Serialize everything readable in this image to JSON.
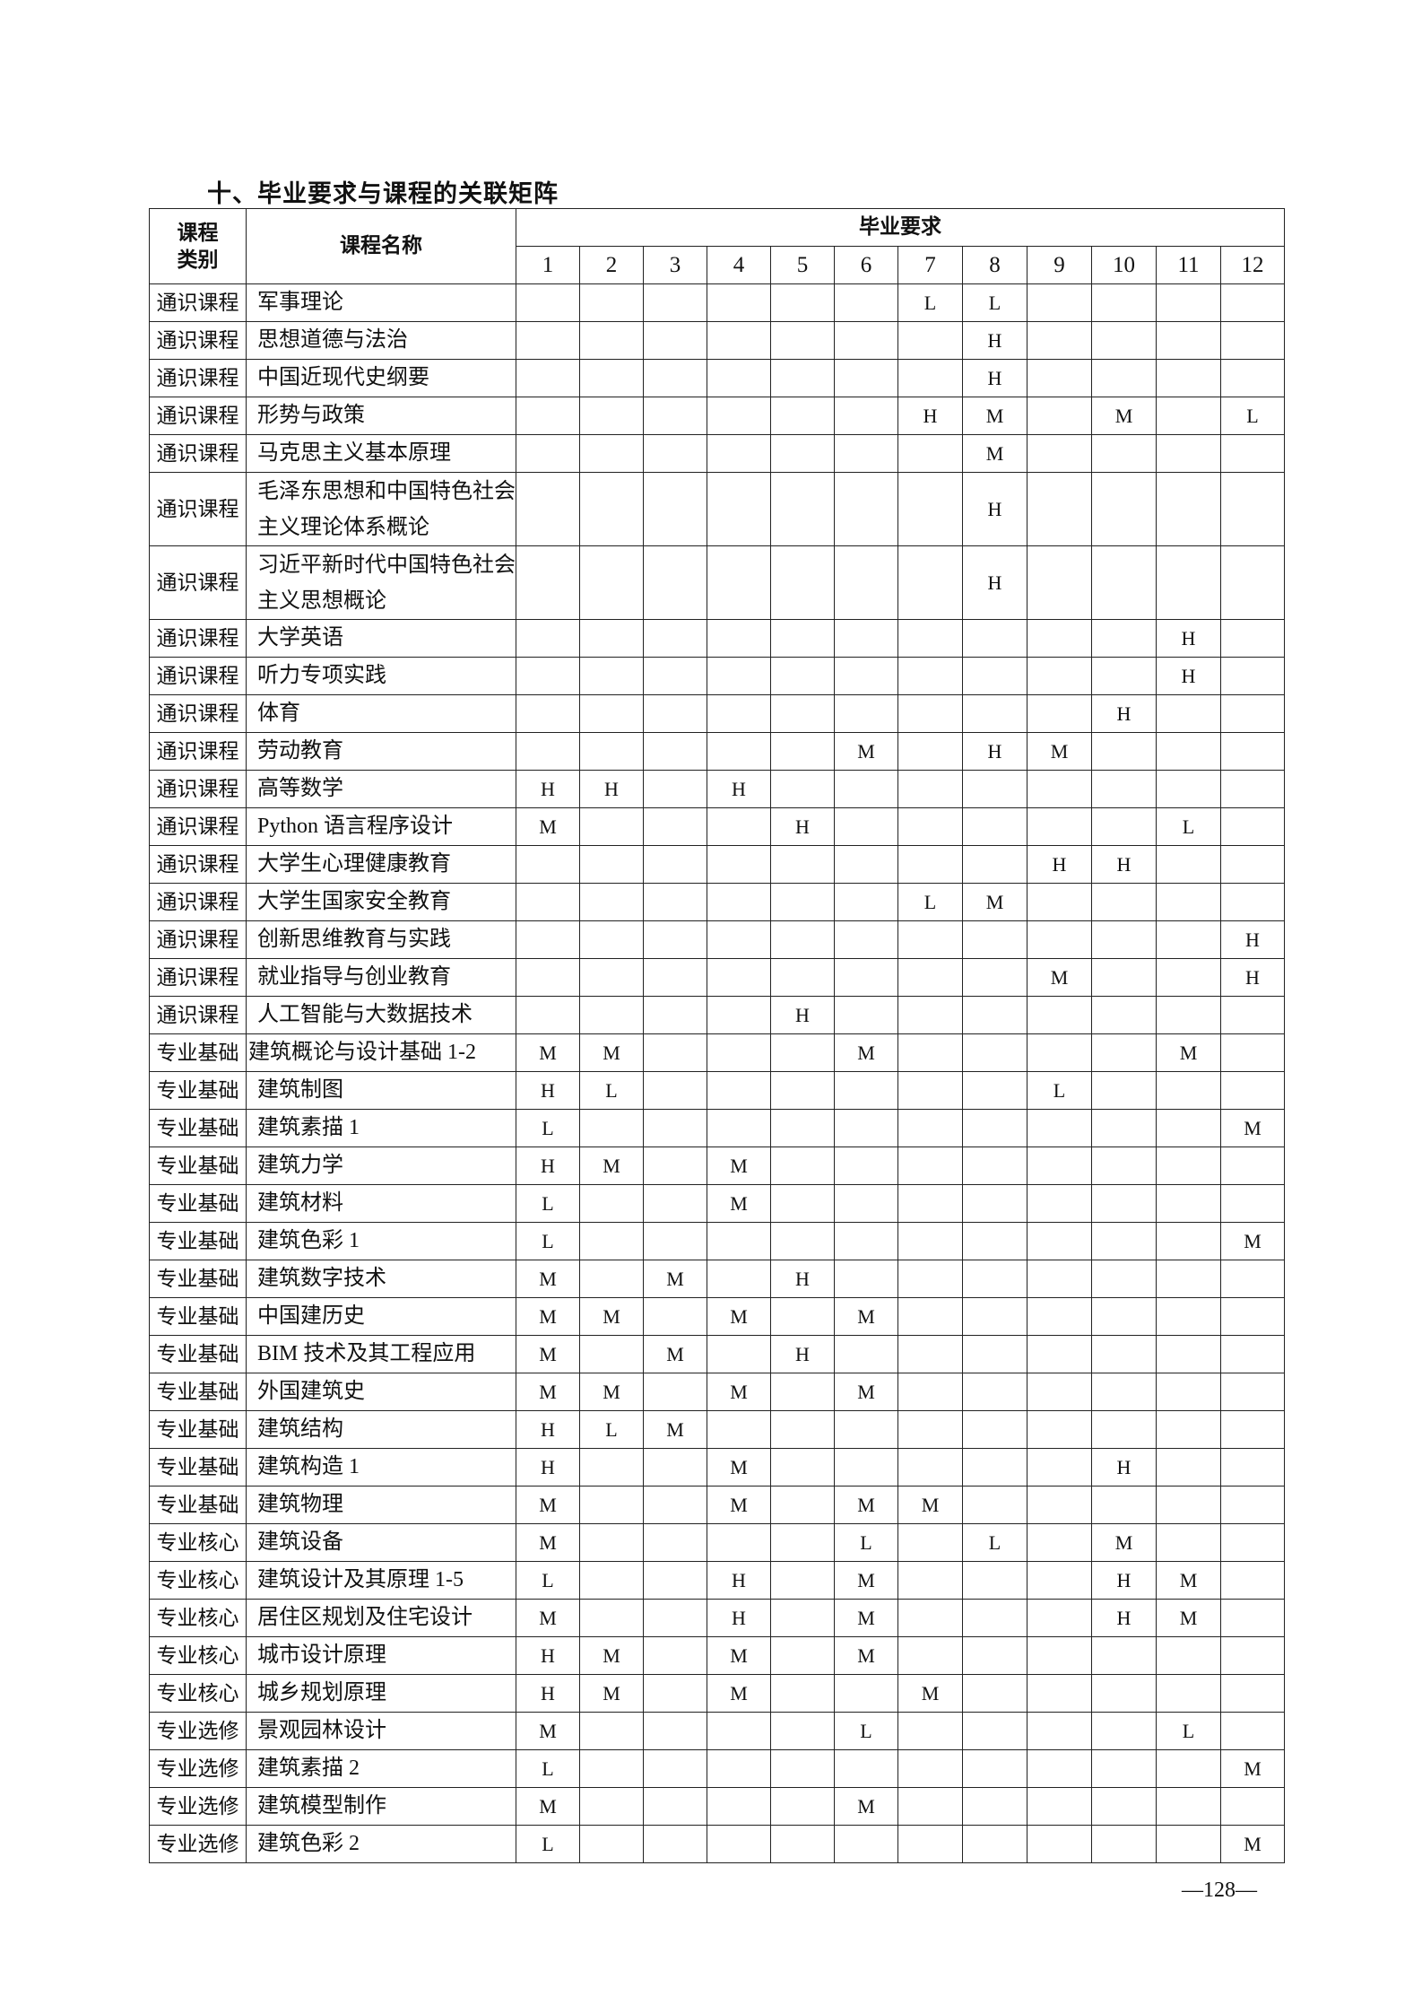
{
  "title": "十、毕业要求与课程的关联矩阵",
  "header": {
    "category_line1": "课程",
    "category_line2": "类别",
    "name": "课程名称",
    "requirements": "毕业要求",
    "columns": [
      "1",
      "2",
      "3",
      "4",
      "5",
      "6",
      "7",
      "8",
      "9",
      "10",
      "11",
      "12"
    ]
  },
  "rows": [
    {
      "category": "通识课程",
      "name": "军事理论",
      "values": [
        "",
        "",
        "",
        "",
        "",
        "",
        "L",
        "L",
        "",
        "",
        "",
        ""
      ]
    },
    {
      "category": "通识课程",
      "name": "思想道德与法治",
      "values": [
        "",
        "",
        "",
        "",
        "",
        "",
        "",
        "H",
        "",
        "",
        "",
        ""
      ]
    },
    {
      "category": "通识课程",
      "name": "中国近现代史纲要",
      "values": [
        "",
        "",
        "",
        "",
        "",
        "",
        "",
        "H",
        "",
        "",
        "",
        ""
      ]
    },
    {
      "category": "通识课程",
      "name": "形势与政策",
      "values": [
        "",
        "",
        "",
        "",
        "",
        "",
        "H",
        "M",
        "",
        "M",
        "",
        "L"
      ]
    },
    {
      "category": "通识课程",
      "name": "马克思主义基本原理",
      "values": [
        "",
        "",
        "",
        "",
        "",
        "",
        "",
        "M",
        "",
        "",
        "",
        ""
      ]
    },
    {
      "category": "通识课程",
      "name": "毛泽东思想和中国特色社会主义理论体系概论",
      "values": [
        "",
        "",
        "",
        "",
        "",
        "",
        "",
        "H",
        "",
        "",
        "",
        ""
      ]
    },
    {
      "category": "通识课程",
      "name": "习近平新时代中国特色社会主义思想概论",
      "values": [
        "",
        "",
        "",
        "",
        "",
        "",
        "",
        "H",
        "",
        "",
        "",
        ""
      ]
    },
    {
      "category": "通识课程",
      "name": "大学英语",
      "values": [
        "",
        "",
        "",
        "",
        "",
        "",
        "",
        "",
        "",
        "",
        "H",
        ""
      ]
    },
    {
      "category": "通识课程",
      "name": "听力专项实践",
      "values": [
        "",
        "",
        "",
        "",
        "",
        "",
        "",
        "",
        "",
        "",
        "H",
        ""
      ]
    },
    {
      "category": "通识课程",
      "name": "体育",
      "values": [
        "",
        "",
        "",
        "",
        "",
        "",
        "",
        "",
        "",
        "H",
        "",
        ""
      ]
    },
    {
      "category": "通识课程",
      "name": "劳动教育",
      "values": [
        "",
        "",
        "",
        "",
        "",
        "M",
        "",
        "H",
        "M",
        "",
        "",
        ""
      ]
    },
    {
      "category": "通识课程",
      "name": "高等数学",
      "values": [
        "H",
        "H",
        "",
        "H",
        "",
        "",
        "",
        "",
        "",
        "",
        "",
        ""
      ]
    },
    {
      "category": "通识课程",
      "name": "Python 语言程序设计",
      "values": [
        "M",
        "",
        "",
        "",
        "H",
        "",
        "",
        "",
        "",
        "",
        "L",
        ""
      ]
    },
    {
      "category": "通识课程",
      "name": "大学生心理健康教育",
      "values": [
        "",
        "",
        "",
        "",
        "",
        "",
        "",
        "",
        "H",
        "H",
        "",
        ""
      ]
    },
    {
      "category": "通识课程",
      "name": "大学生国家安全教育",
      "values": [
        "",
        "",
        "",
        "",
        "",
        "",
        "L",
        "M",
        "",
        "",
        "",
        ""
      ]
    },
    {
      "category": "通识课程",
      "name": "创新思维教育与实践",
      "values": [
        "",
        "",
        "",
        "",
        "",
        "",
        "",
        "",
        "",
        "",
        "",
        "H"
      ]
    },
    {
      "category": "通识课程",
      "name": "就业指导与创业教育",
      "values": [
        "",
        "",
        "",
        "",
        "",
        "",
        "",
        "",
        "M",
        "",
        "",
        "H"
      ]
    },
    {
      "category": "通识课程",
      "name": "人工智能与大数据技术",
      "values": [
        "",
        "",
        "",
        "",
        "H",
        "",
        "",
        "",
        "",
        "",
        "",
        ""
      ]
    },
    {
      "category": "专业基础",
      "name": "建筑概论与设计基础 1-2",
      "values": [
        "M",
        "M",
        "",
        "",
        "",
        "M",
        "",
        "",
        "",
        "",
        "M",
        ""
      ]
    },
    {
      "category": "专业基础",
      "name": "建筑制图",
      "values": [
        "H",
        "L",
        "",
        "",
        "",
        "",
        "",
        "",
        "L",
        "",
        "",
        ""
      ]
    },
    {
      "category": "专业基础",
      "name": "建筑素描 1",
      "values": [
        "L",
        "",
        "",
        "",
        "",
        "",
        "",
        "",
        "",
        "",
        "",
        "M"
      ]
    },
    {
      "category": "专业基础",
      "name": "建筑力学",
      "values": [
        "H",
        "M",
        "",
        "M",
        "",
        "",
        "",
        "",
        "",
        "",
        "",
        ""
      ]
    },
    {
      "category": "专业基础",
      "name": "建筑材料",
      "values": [
        "L",
        "",
        "",
        "M",
        "",
        "",
        "",
        "",
        "",
        "",
        "",
        ""
      ]
    },
    {
      "category": "专业基础",
      "name": "建筑色彩 1",
      "values": [
        "L",
        "",
        "",
        "",
        "",
        "",
        "",
        "",
        "",
        "",
        "",
        "M"
      ]
    },
    {
      "category": "专业基础",
      "name": "建筑数字技术",
      "values": [
        "M",
        "",
        "M",
        "",
        "H",
        "",
        "",
        "",
        "",
        "",
        "",
        ""
      ]
    },
    {
      "category": "专业基础",
      "name": "中国建历史",
      "values": [
        "M",
        "M",
        "",
        "M",
        "",
        "M",
        "",
        "",
        "",
        "",
        "",
        ""
      ]
    },
    {
      "category": "专业基础",
      "name": "BIM 技术及其工程应用",
      "values": [
        "M",
        "",
        "M",
        "",
        "H",
        "",
        "",
        "",
        "",
        "",
        "",
        ""
      ]
    },
    {
      "category": "专业基础",
      "name": "外国建筑史",
      "values": [
        "M",
        "M",
        "",
        "M",
        "",
        "M",
        "",
        "",
        "",
        "",
        "",
        ""
      ]
    },
    {
      "category": "专业基础",
      "name": "建筑结构",
      "values": [
        "H",
        "L",
        "M",
        "",
        "",
        "",
        "",
        "",
        "",
        "",
        "",
        ""
      ]
    },
    {
      "category": "专业基础",
      "name": "建筑构造 1",
      "values": [
        "H",
        "",
        "",
        "M",
        "",
        "",
        "",
        "",
        "",
        "H",
        "",
        ""
      ]
    },
    {
      "category": "专业基础",
      "name": "建筑物理",
      "values": [
        "M",
        "",
        "",
        "M",
        "",
        "M",
        "M",
        "",
        "",
        "",
        "",
        ""
      ]
    },
    {
      "category": "专业核心",
      "name": "建筑设备",
      "values": [
        "M",
        "",
        "",
        "",
        "",
        "L",
        "",
        "L",
        "",
        "M",
        "",
        ""
      ]
    },
    {
      "category": "专业核心",
      "name": "建筑设计及其原理 1-5",
      "values": [
        "L",
        "",
        "",
        "H",
        "",
        "M",
        "",
        "",
        "",
        "H",
        "M",
        ""
      ]
    },
    {
      "category": "专业核心",
      "name": "居住区规划及住宅设计",
      "values": [
        "M",
        "",
        "",
        "H",
        "",
        "M",
        "",
        "",
        "",
        "H",
        "M",
        ""
      ]
    },
    {
      "category": "专业核心",
      "name": "城市设计原理",
      "values": [
        "H",
        "M",
        "",
        "M",
        "",
        "M",
        "",
        "",
        "",
        "",
        "",
        ""
      ]
    },
    {
      "category": "专业核心",
      "name": "城乡规划原理",
      "values": [
        "H",
        "M",
        "",
        "M",
        "",
        "",
        "M",
        "",
        "",
        "",
        "",
        ""
      ]
    },
    {
      "category": "专业选修",
      "name": "景观园林设计",
      "values": [
        "M",
        "",
        "",
        "",
        "",
        "L",
        "",
        "",
        "",
        "",
        "L",
        ""
      ]
    },
    {
      "category": "专业选修",
      "name": "建筑素描 2",
      "values": [
        "L",
        "",
        "",
        "",
        "",
        "",
        "",
        "",
        "",
        "",
        "",
        "M"
      ]
    },
    {
      "category": "专业选修",
      "name": "建筑模型制作",
      "values": [
        "M",
        "",
        "",
        "",
        "",
        "M",
        "",
        "",
        "",
        "",
        "",
        ""
      ]
    },
    {
      "category": "专业选修",
      "name": "建筑色彩 2",
      "values": [
        "L",
        "",
        "",
        "",
        "",
        "",
        "",
        "",
        "",
        "",
        "",
        "M"
      ]
    }
  ],
  "page_number": "—128—"
}
